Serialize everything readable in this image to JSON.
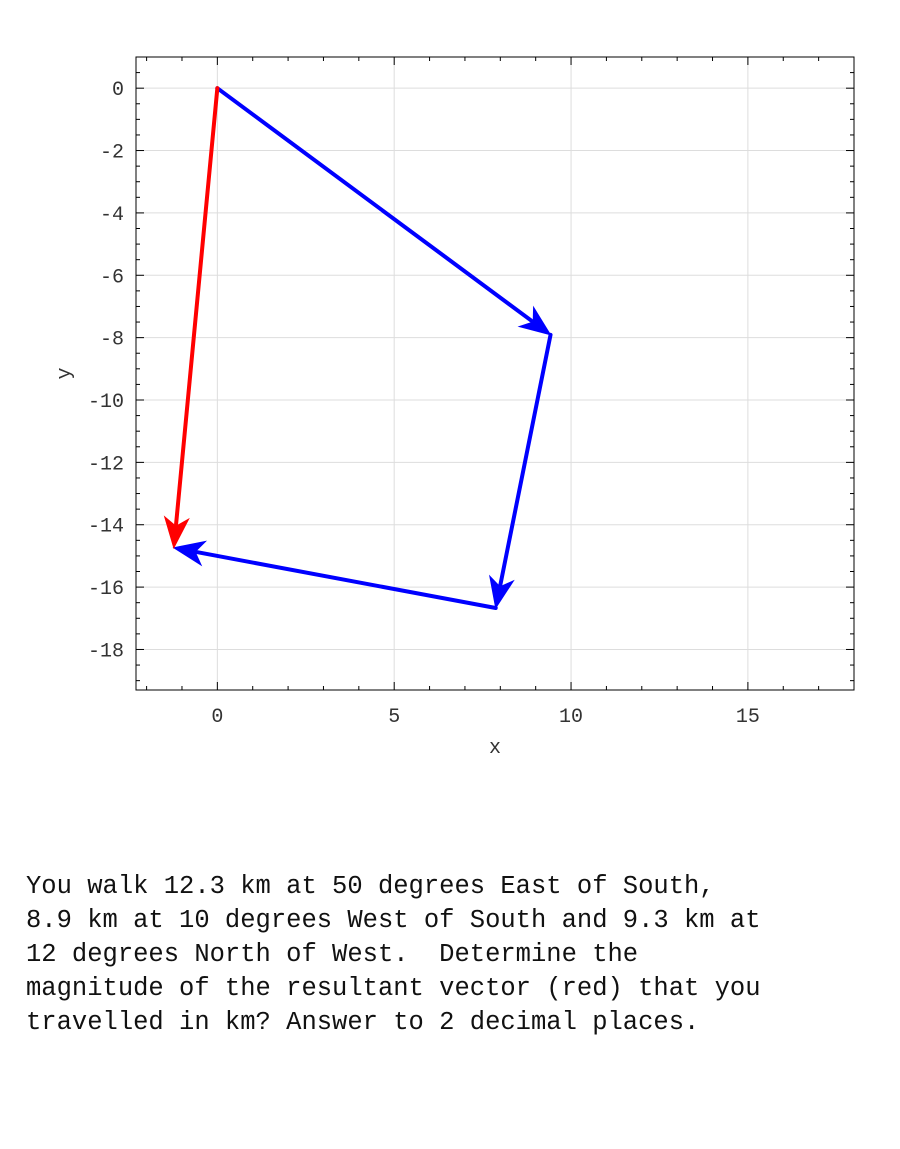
{
  "chart_data": {
    "type": "vector-diagram",
    "xlabel": "x",
    "ylabel": "y",
    "xlim": [
      -2.3,
      18
    ],
    "ylim": [
      -19.3,
      1
    ],
    "xticks": [
      0,
      5,
      10,
      15
    ],
    "yticks": [
      0,
      -2,
      -4,
      -6,
      -8,
      -10,
      -12,
      -14,
      -16,
      -18
    ],
    "grid": true,
    "vectors": [
      {
        "from": [
          0,
          0
        ],
        "to": [
          9.42,
          -7.91
        ],
        "color": "#0000ff",
        "magnitude_km": 12.3,
        "direction": "50 degrees East of South"
      },
      {
        "from": [
          9.42,
          -7.91
        ],
        "to": [
          7.87,
          -16.67
        ],
        "color": "#0000ff",
        "magnitude_km": 8.9,
        "direction": "10 degrees West of South"
      },
      {
        "from": [
          7.87,
          -16.67
        ],
        "to": [
          -1.23,
          -14.74
        ],
        "color": "#0000ff",
        "magnitude_km": 9.3,
        "direction": "12 degrees North of West"
      },
      {
        "from": [
          0,
          0
        ],
        "to": [
          -1.23,
          -14.74
        ],
        "color": "#ff0000",
        "label": "resultant"
      }
    ]
  },
  "question": {
    "lines": [
      "You walk 12.3 km at 50 degrees East of South,",
      "8.9 km at 10 degrees West of South and 9.3 km at",
      "12 degrees North of West.  Determine the",
      "magnitude of the resultant vector (red) that you",
      "travelled in km? Answer to 2 decimal places."
    ]
  }
}
